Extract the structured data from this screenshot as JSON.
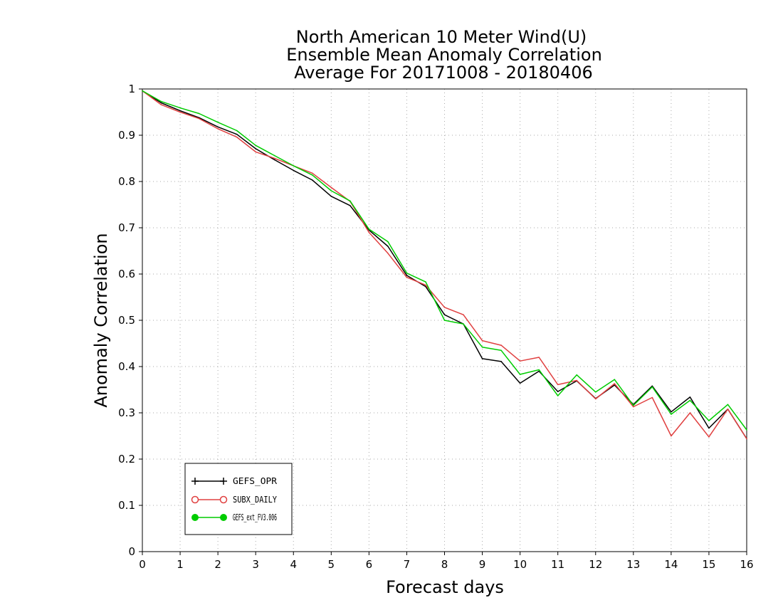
{
  "chart_data": {
    "type": "line",
    "title": [
      "North American 10 Meter Wind(U)",
      "Ensemble Mean Anomaly Correlation",
      "Average For 20171008 - 20180406"
    ],
    "xlabel": "Forecast days",
    "ylabel": "Anomaly Correlation",
    "xlim": [
      0,
      16
    ],
    "ylim": [
      0,
      1
    ],
    "x_ticks": [
      "0",
      "1",
      "2",
      "3",
      "4",
      "5",
      "6",
      "7",
      "8",
      "9",
      "10",
      "11",
      "12",
      "13",
      "14",
      "15",
      "16"
    ],
    "y_ticks": [
      "0",
      "0.1",
      "0.2",
      "0.3",
      "0.4",
      "0.5",
      "0.6",
      "0.7",
      "0.8",
      "0.9",
      "1"
    ],
    "grid": true,
    "legend_position": "bottom-left",
    "x": [
      0,
      0.5,
      1,
      1.5,
      2,
      2.5,
      3,
      3.5,
      4,
      4.5,
      5,
      5.5,
      6,
      6.5,
      7,
      7.5,
      8,
      8.5,
      9,
      9.5,
      10,
      10.5,
      11,
      11.5,
      12,
      12.5,
      13,
      13.5,
      14,
      14.5,
      15,
      15.5,
      16
    ],
    "series": [
      {
        "name": "GEFS_OPR",
        "color": "#000000",
        "marker": "plus",
        "values": [
          0.996,
          0.97,
          0.953,
          0.938,
          0.918,
          0.902,
          0.871,
          0.847,
          0.824,
          0.803,
          0.768,
          0.748,
          0.695,
          0.66,
          0.597,
          0.573,
          0.512,
          0.492,
          0.417,
          0.411,
          0.364,
          0.39,
          0.346,
          0.369,
          0.331,
          0.36,
          0.318,
          0.358,
          0.302,
          0.334,
          0.267,
          0.308,
          0.244
        ]
      },
      {
        "name": "SUBX_DAILY",
        "color": "#e04040",
        "marker": "open-circle",
        "values": [
          0.996,
          0.966,
          0.95,
          0.936,
          0.914,
          0.896,
          0.864,
          0.85,
          0.834,
          0.818,
          0.787,
          0.757,
          0.69,
          0.645,
          0.593,
          0.576,
          0.528,
          0.512,
          0.456,
          0.446,
          0.412,
          0.42,
          0.361,
          0.37,
          0.33,
          0.363,
          0.313,
          0.333,
          0.25,
          0.3,
          0.248,
          0.308,
          0.244
        ]
      },
      {
        "name": "GEFS_ext_FV3.006",
        "color": "#00cc00",
        "marker": "filled-circle",
        "values": [
          0.996,
          0.973,
          0.959,
          0.947,
          0.928,
          0.91,
          0.878,
          0.856,
          0.834,
          0.814,
          0.78,
          0.758,
          0.697,
          0.67,
          0.602,
          0.583,
          0.5,
          0.492,
          0.442,
          0.435,
          0.383,
          0.393,
          0.337,
          0.382,
          0.345,
          0.372,
          0.316,
          0.356,
          0.297,
          0.327,
          0.283,
          0.318,
          0.263
        ]
      }
    ]
  }
}
